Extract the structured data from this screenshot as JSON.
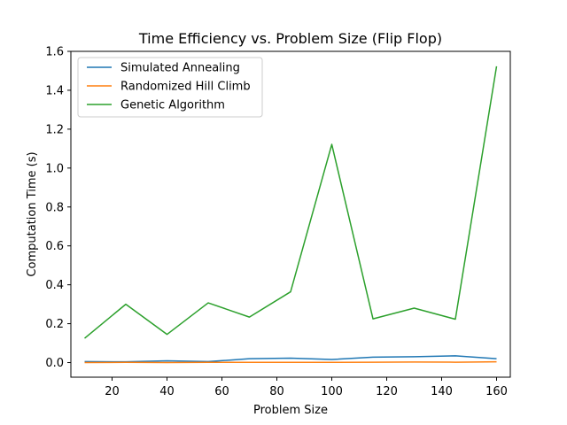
{
  "chart_data": {
    "type": "line",
    "title": "Time Efficiency vs. Problem Size (Flip Flop)",
    "xlabel": "Problem Size",
    "ylabel": "Computation Time (s)",
    "xlim": [
      5,
      165
    ],
    "ylim": [
      -0.075,
      1.6
    ],
    "xticks": [
      20,
      40,
      60,
      80,
      100,
      120,
      140,
      160
    ],
    "xtick_labels": [
      "20",
      "40",
      "60",
      "80",
      "100",
      "120",
      "140",
      "160"
    ],
    "yticks": [
      0.0,
      0.2,
      0.4,
      0.6,
      0.8,
      1.0,
      1.2,
      1.4,
      1.6
    ],
    "ytick_labels": [
      "0.0",
      "0.2",
      "0.4",
      "0.6",
      "0.8",
      "1.0",
      "1.2",
      "1.4",
      "1.6"
    ],
    "grid": false,
    "legend_position": "upper-left",
    "x": [
      10,
      25,
      40,
      55,
      70,
      85,
      100,
      115,
      130,
      145,
      160
    ],
    "series": [
      {
        "name": "Simulated Annealing",
        "color": "#1f77b4",
        "values": [
          0.005,
          0.004,
          0.009,
          0.005,
          0.02,
          0.023,
          0.016,
          0.028,
          0.03,
          0.035,
          0.02
        ]
      },
      {
        "name": "Randomized Hill Climb",
        "color": "#ff7f0e",
        "values": [
          0.0,
          0.001,
          0.0,
          0.001,
          0.001,
          0.001,
          0.001,
          0.002,
          0.003,
          0.002,
          0.004
        ]
      },
      {
        "name": "Genetic Algorithm",
        "color": "#2ca02c",
        "values": [
          0.125,
          0.3,
          0.145,
          0.307,
          0.234,
          0.364,
          1.122,
          0.225,
          0.28,
          0.223,
          1.523
        ]
      }
    ]
  }
}
